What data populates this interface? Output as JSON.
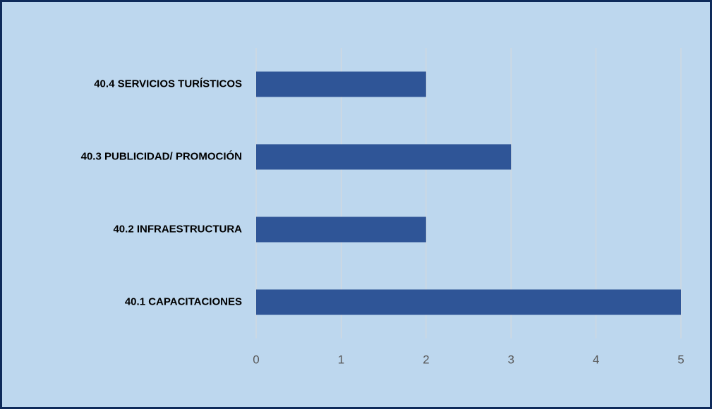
{
  "chart_data": {
    "type": "bar",
    "orientation": "horizontal",
    "categories": [
      "40.4 SERVICIOS TURÍSTICOS",
      "40.3 PUBLICIDAD/ PROMOCIÓN",
      "40.2 INFRAESTRUCTURA",
      "40.1 CAPACITACIONES"
    ],
    "values": [
      2,
      3,
      2,
      5
    ],
    "color": "#2f5597",
    "xlim": [
      0,
      5
    ],
    "xticks": [
      0,
      1,
      2,
      3,
      4,
      5
    ],
    "grid": true
  }
}
